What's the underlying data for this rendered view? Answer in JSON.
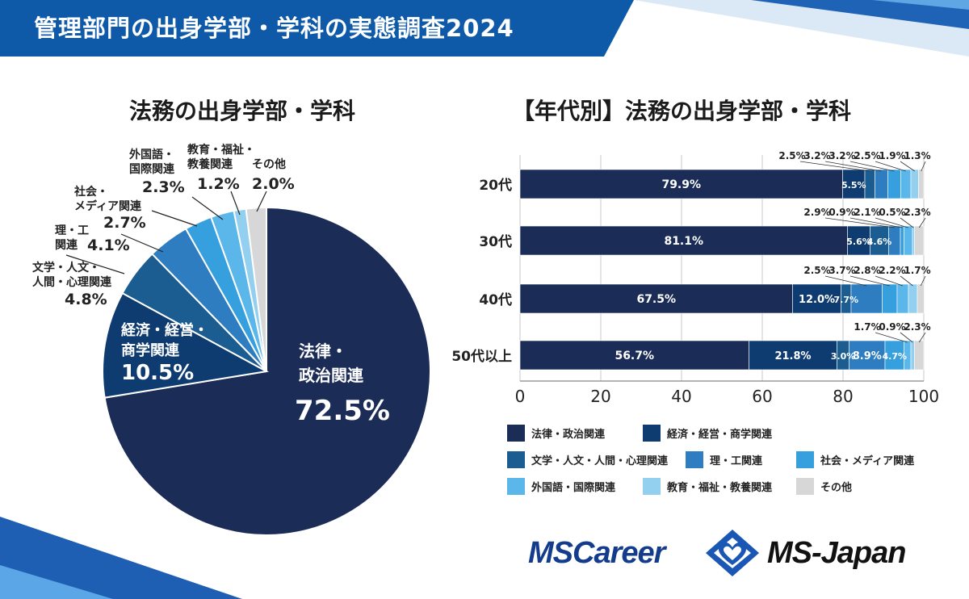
{
  "banner": {
    "title": "管理部門の出身学部・学科の実態調査2024"
  },
  "colors": {
    "banner": "#0e5aa8",
    "law": "#1b2c57",
    "econ": "#0e3c70",
    "lit": "#1c5d91",
    "sci": "#2d7dc0",
    "social": "#36a0de",
    "foreign": "#5bb6ea",
    "edu": "#93d0f0",
    "other": "#d7d7d7"
  },
  "pie": {
    "title": "法務の出身学部・学科",
    "labels": {
      "law_name1": "法律・",
      "law_name2": "政治関連",
      "law_pct": "72.5%",
      "econ_name1": "経済・経営・",
      "econ_name2": "商学関連",
      "econ_pct": "10.5%",
      "lit_name1": "文学・人文・",
      "lit_name2": "人間・心理関連",
      "lit_pct": "4.8%",
      "sci_name1": "理・工",
      "sci_name2": "関連",
      "sci_pct": "4.1%",
      "social_name1": "社会・",
      "social_name2": "メディア関連",
      "social_pct": "2.7%",
      "foreign_name1": "外国語・",
      "foreign_name2": "国際関連",
      "foreign_pct": "2.3%",
      "edu_name1": "教育・福祉・",
      "edu_name2": "教養関連",
      "edu_pct": "1.2%",
      "other_name": "その他",
      "other_pct": "2.0%"
    }
  },
  "bars": {
    "title": "【年代別】法務の出身学部・学科",
    "axis_ticks": [
      "0",
      "20",
      "40",
      "60",
      "80",
      "100"
    ]
  },
  "legend": [
    {
      "key": "law",
      "label": "法律・政治関連"
    },
    {
      "key": "econ",
      "label": "経済・経営・商学関連"
    },
    {
      "key": "lit",
      "label": "文学・人文・人間・心理関連"
    },
    {
      "key": "sci",
      "label": "理・工関連"
    },
    {
      "key": "social",
      "label": "社会・メディア関連"
    },
    {
      "key": "foreign",
      "label": "外国語・国際関連"
    },
    {
      "key": "edu",
      "label": "教育・福祉・教養関連"
    },
    {
      "key": "other",
      "label": "その他"
    }
  ],
  "logos": {
    "left": "MSCareer",
    "right": "MS-Japan"
  },
  "chart_data": [
    {
      "type": "pie",
      "title": "法務の出身学部・学科",
      "categories": [
        "法律・政治関連",
        "経済・経営・商学関連",
        "文学・人文・人間・心理関連",
        "理・工関連",
        "社会・メディア関連",
        "外国語・国際関連",
        "教育・福祉・教養関連",
        "その他"
      ],
      "keys": [
        "law",
        "econ",
        "lit",
        "sci",
        "social",
        "foreign",
        "edu",
        "other"
      ],
      "values": [
        72.5,
        10.5,
        4.8,
        4.1,
        2.7,
        2.3,
        1.2,
        2.0
      ]
    },
    {
      "type": "bar",
      "orientation": "horizontal",
      "stacked": true,
      "title": "【年代別】法務の出身学部・学科",
      "categories": [
        "20代",
        "30代",
        "40代",
        "50代以上"
      ],
      "xlim": [
        0,
        100
      ],
      "grid": true,
      "series": [
        {
          "key": "law",
          "name": "法律・政治関連",
          "values": [
            79.9,
            81.1,
            67.5,
            56.7
          ]
        },
        {
          "key": "econ",
          "name": "経済・経営・商学関連",
          "values": [
            5.5,
            5.6,
            12.0,
            21.8
          ]
        },
        {
          "key": "lit",
          "name": "文学・人文・人間・心理関連",
          "values": [
            2.5,
            4.6,
            2.5,
            3.0
          ]
        },
        {
          "key": "sci",
          "name": "理・工関連",
          "values": [
            3.2,
            2.9,
            7.7,
            8.9
          ]
        },
        {
          "key": "social",
          "name": "社会・メディア関連",
          "values": [
            3.2,
            0.9,
            3.7,
            4.7
          ]
        },
        {
          "key": "foreign",
          "name": "外国語・国際関連",
          "values": [
            2.5,
            2.1,
            2.8,
            1.7
          ]
        },
        {
          "key": "edu",
          "name": "教育・福祉・教養関連",
          "values": [
            1.9,
            0.5,
            2.2,
            0.9
          ]
        },
        {
          "key": "other",
          "name": "その他",
          "values": [
            1.3,
            2.3,
            1.7,
            2.3
          ]
        }
      ],
      "data_labels": [
        {
          "inside": [
            "79.9%",
            "5.5%"
          ],
          "above": [
            "2.5%",
            "3.2%",
            "3.2%",
            "2.5%",
            "1.9%",
            "1.3%"
          ]
        },
        {
          "inside": [
            "81.1%",
            "5.6%",
            "4.6%"
          ],
          "above": [
            "2.9%",
            "0.9%",
            "2.1%",
            "0.5%",
            "2.3%"
          ]
        },
        {
          "inside": [
            "67.5%",
            "12.0%",
            "7.7%"
          ],
          "above": [
            "2.5%",
            "3.7%",
            "2.8%",
            "2.2%",
            "1.7%"
          ]
        },
        {
          "inside": [
            "56.7%",
            "21.8%",
            "3.0%",
            "8.9%",
            "4.7%"
          ],
          "above": [
            "1.7%",
            "0.9%",
            "2.3%"
          ]
        }
      ]
    }
  ]
}
